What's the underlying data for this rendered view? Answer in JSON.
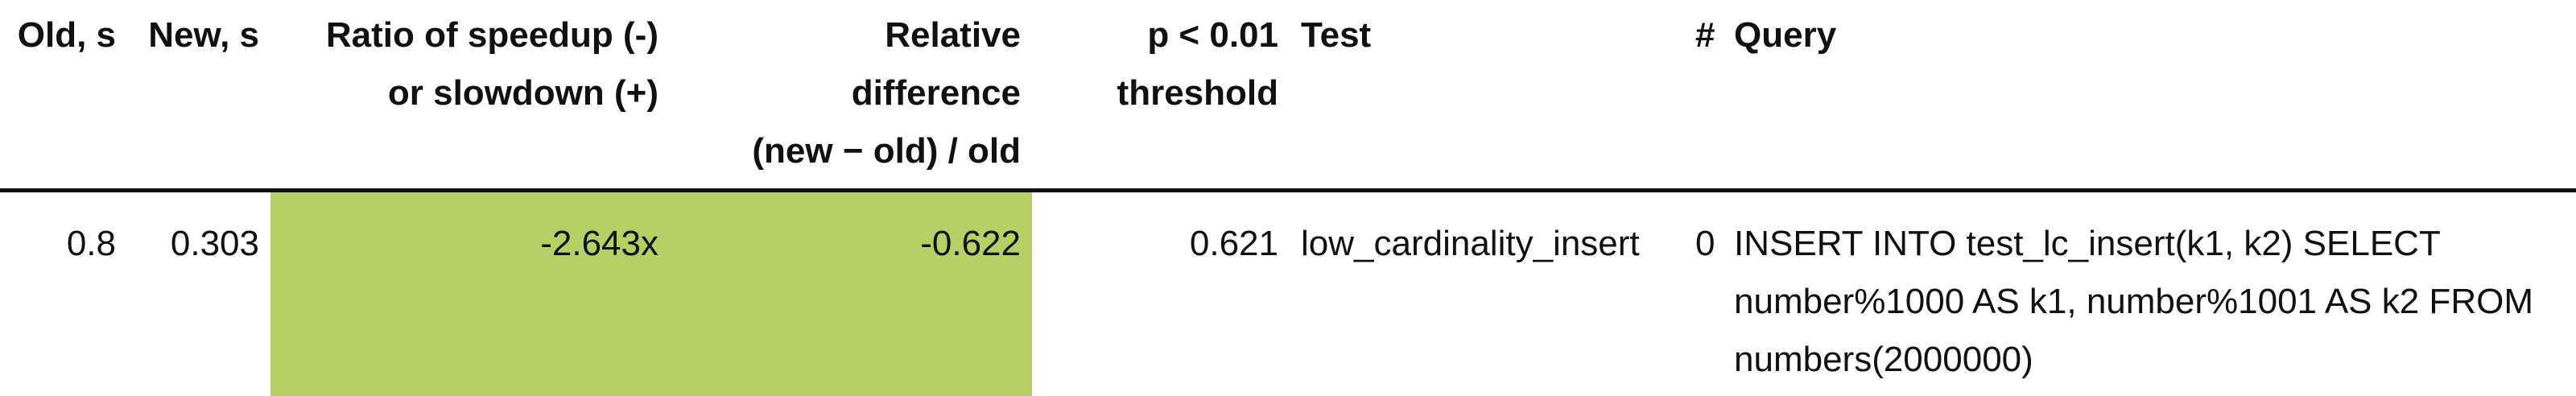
{
  "table": {
    "headers": {
      "old": "Old, s",
      "new": "New, s",
      "ratio_line1": "Ratio of speedup (-)",
      "ratio_line2": "or slowdown (+)",
      "rel_line1": "Relative",
      "rel_line2": "difference",
      "rel_line3": "(new − old) / old",
      "p_line1": "p < 0.01",
      "p_line2": "threshold",
      "test": "Test",
      "num": "#",
      "query": "Query"
    },
    "rows": [
      {
        "old": "0.8",
        "new": "0.303",
        "ratio": "-2.643x",
        "rel": "-0.622",
        "p": "0.621",
        "test": "low_cardinality_insert",
        "num": "0",
        "query": "INSERT INTO test_lc_insert(k1, k2) SELECT number%1000 AS k1, number%1001 AS k2 FROM numbers(2000000)"
      }
    ]
  },
  "colors": {
    "highlight": "#b5d165",
    "rule": "#111111"
  }
}
